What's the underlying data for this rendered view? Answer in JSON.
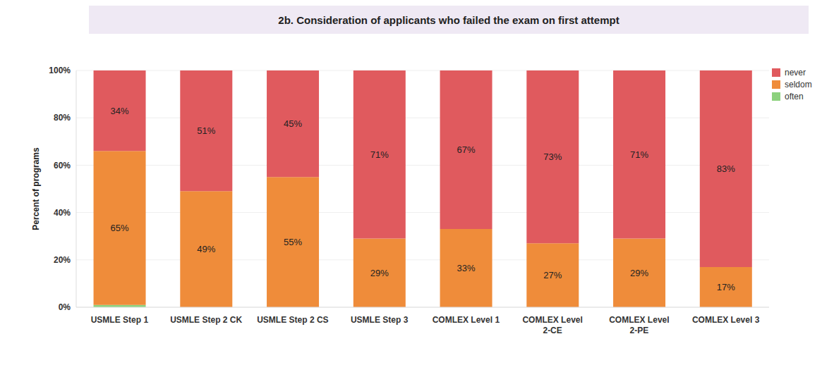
{
  "chart_data": {
    "type": "bar",
    "title": "2b. Consideration of applicants who failed the exam on first attempt",
    "y_label": "Percent of programs",
    "categories": [
      "USMLE Step 1",
      "USMLE Step 2 CK",
      "USMLE Step 2 CS",
      "USMLE Step 3",
      "COMLEX Level 1",
      "COMLEX Level 2-CE",
      "COMLEX Level 2-PE",
      "COMLEX Level 3"
    ],
    "stacked": true,
    "grid": true,
    "legend": "top-right",
    "ylim": [
      0,
      100
    ],
    "yticks": [
      {
        "value": 0,
        "label": "0%"
      },
      {
        "value": 20,
        "label": "20%"
      },
      {
        "value": 40,
        "label": "40%"
      },
      {
        "value": 60,
        "label": "60%"
      },
      {
        "value": 80,
        "label": "80%"
      },
      {
        "value": 100,
        "label": "100%"
      }
    ],
    "series": [
      {
        "name": "often",
        "color": "#8cd17d",
        "values": [
          1,
          0,
          0,
          0,
          0,
          0,
          0,
          0
        ],
        "data_labels": false
      },
      {
        "name": "seldom",
        "color": "#ef8c3a",
        "values": [
          65,
          49,
          55,
          29,
          33,
          27,
          29,
          17
        ],
        "data_labels": true,
        "value_labels": [
          "65%",
          "49%",
          "55%",
          "29%",
          "33%",
          "27%",
          "29%",
          "17%"
        ]
      },
      {
        "name": "never",
        "color": "#e05a5e",
        "values": [
          34,
          51,
          45,
          71,
          67,
          73,
          71,
          83
        ],
        "data_labels": true,
        "value_labels": [
          "34%",
          "51%",
          "45%",
          "71%",
          "67%",
          "73%",
          "71%",
          "83%"
        ]
      }
    ]
  }
}
